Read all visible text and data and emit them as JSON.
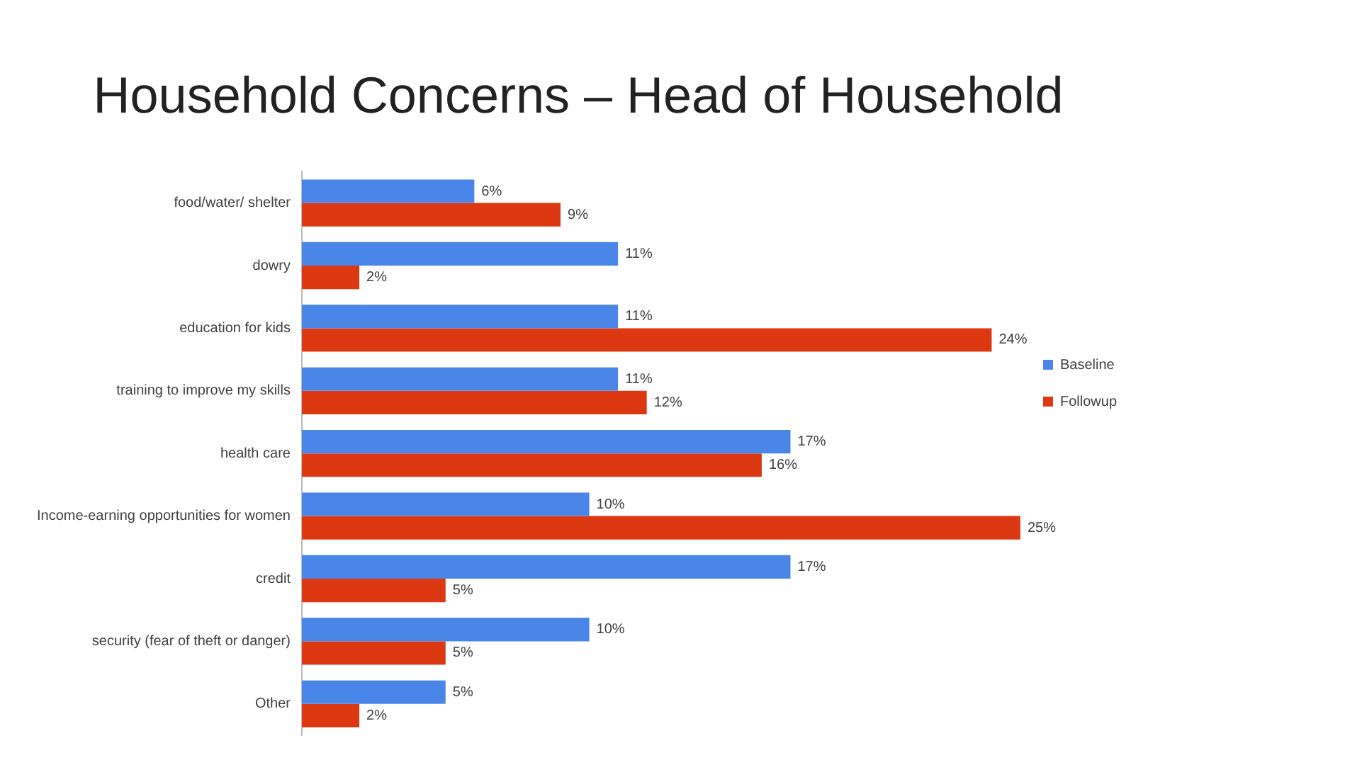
{
  "chart_data": {
    "type": "bar",
    "orientation": "horizontal",
    "title": "Household Concerns – Head of Household",
    "categories": [
      "food/water/ shelter",
      "dowry",
      "education for kids",
      "training to improve my skills",
      "health care",
      "Income-earning opportunities for women",
      "credit",
      "security (fear of theft or danger)",
      "Other"
    ],
    "series": [
      {
        "name": "Baseline",
        "color": "#4a86e8",
        "values": [
          6,
          11,
          11,
          11,
          17,
          10,
          17,
          10,
          5
        ],
        "value_labels": [
          "6%",
          "11%",
          "11%",
          "11%",
          "17%",
          "10%",
          "17%",
          "10%",
          "5%"
        ]
      },
      {
        "name": "Followup",
        "color": "#dc3912",
        "values": [
          9,
          2,
          24,
          12,
          16,
          25,
          5,
          5,
          2
        ],
        "value_labels": [
          "9%",
          "2%",
          "24%",
          "12%",
          "16%",
          "25%",
          "5%",
          "5%",
          "2%"
        ]
      }
    ],
    "legend": "right",
    "grid": false
  }
}
